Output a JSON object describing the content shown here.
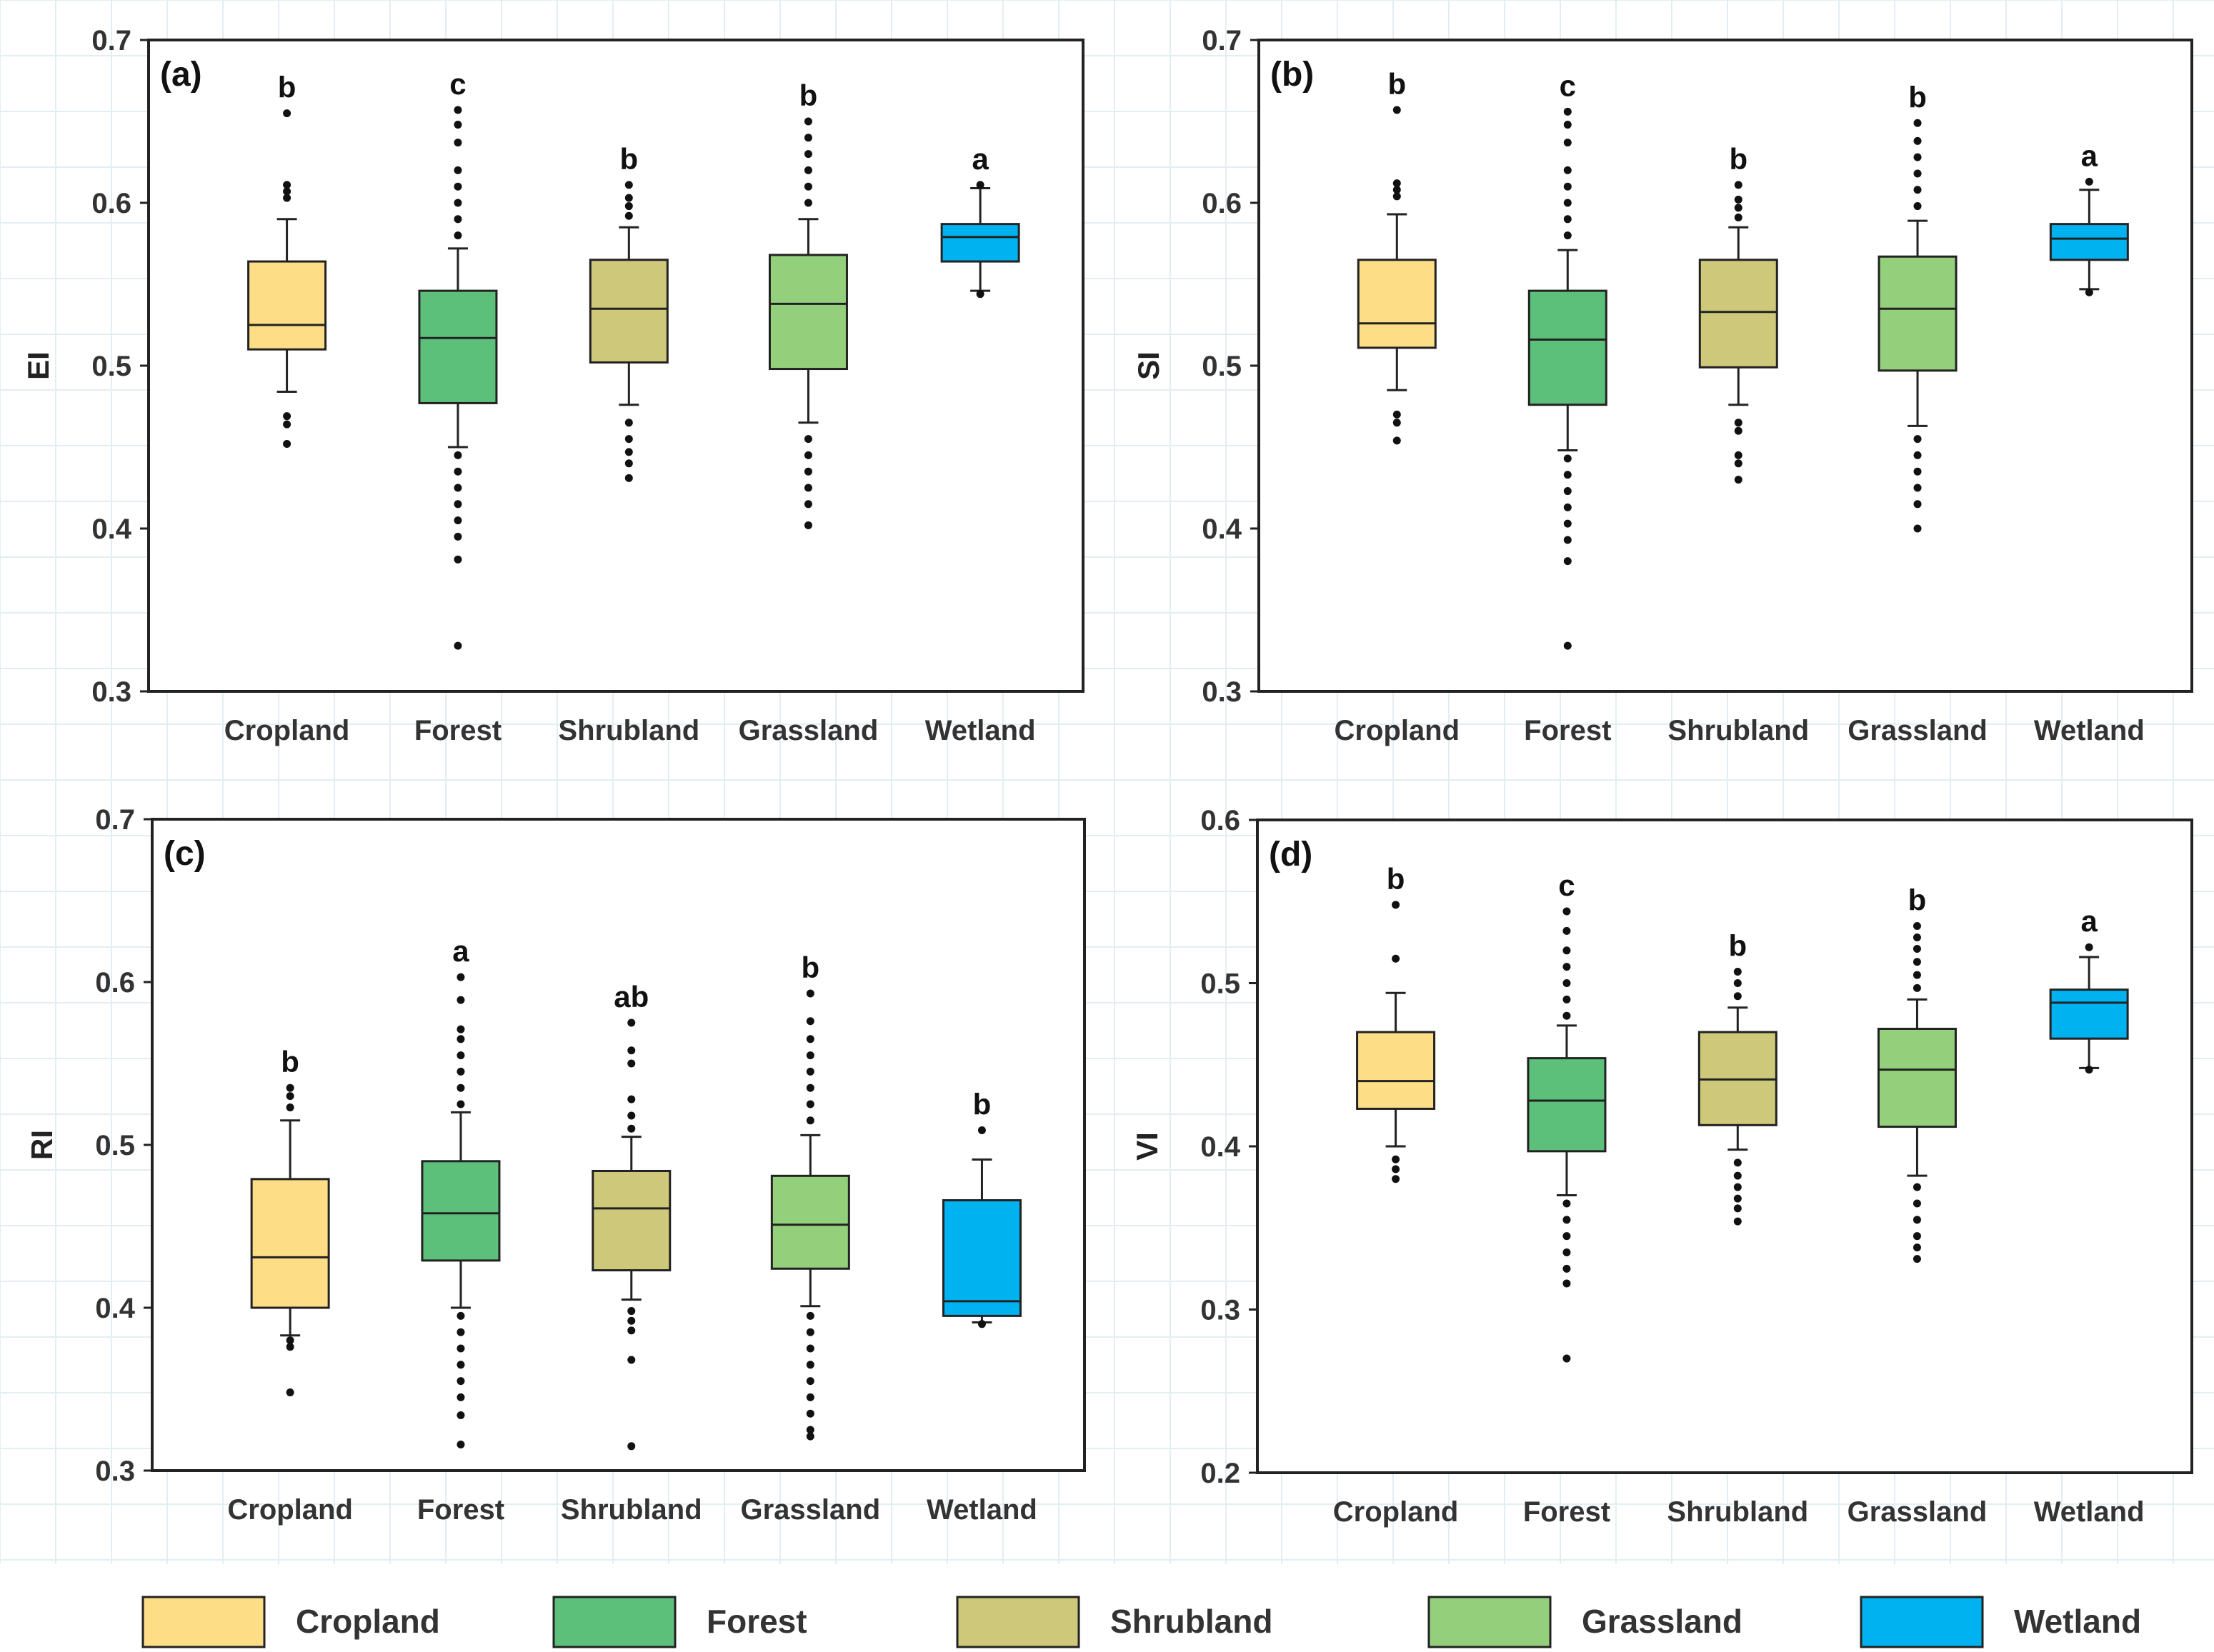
{
  "categories": [
    "Cropland",
    "Forest",
    "Shrubland",
    "Grassland",
    "Wetland"
  ],
  "colors": {
    "Cropland": "#fddd86",
    "Forest": "#5cc07a",
    "Shrubland": "#cec97a",
    "Grassland": "#94d07c",
    "Wetland": "#00b2f0",
    "grid": "#e3eef2"
  },
  "legend": {
    "items": [
      "Cropland",
      "Forest",
      "Shrubland",
      "Grassland",
      "Wetland"
    ]
  },
  "chart_data": [
    {
      "type": "box",
      "label": "(a)",
      "ylabel": "EI",
      "ylim": [
        0.3,
        0.7
      ],
      "yticks": [
        "0.3",
        "0.4",
        "0.5",
        "0.6",
        "0.7"
      ],
      "categories": [
        "Cropland",
        "Forest",
        "Shrubland",
        "Grassland",
        "Wetland"
      ],
      "boxes": [
        {
          "name": "Cropland",
          "q1": 0.51,
          "median": 0.525,
          "q3": 0.564,
          "whisker_low": 0.484,
          "whisker_high": 0.59,
          "sig": "b",
          "outliers_low": [
            0.469,
            0.464,
            0.452
          ],
          "outliers_high": [
            0.603,
            0.607,
            0.611,
            0.655
          ]
        },
        {
          "name": "Forest",
          "q1": 0.477,
          "median": 0.517,
          "q3": 0.546,
          "whisker_low": 0.45,
          "whisker_high": 0.572,
          "sig": "c",
          "outliers_low": [
            0.445,
            0.435,
            0.425,
            0.415,
            0.405,
            0.395,
            0.381,
            0.328
          ],
          "outliers_high": [
            0.58,
            0.59,
            0.6,
            0.61,
            0.62,
            0.637,
            0.648,
            0.657
          ]
        },
        {
          "name": "Shrubland",
          "q1": 0.502,
          "median": 0.535,
          "q3": 0.565,
          "whisker_low": 0.476,
          "whisker_high": 0.585,
          "sig": "b",
          "outliers_low": [
            0.465,
            0.455,
            0.447,
            0.44,
            0.431
          ],
          "outliers_high": [
            0.592,
            0.598,
            0.603,
            0.611
          ]
        },
        {
          "name": "Grassland",
          "q1": 0.498,
          "median": 0.538,
          "q3": 0.568,
          "whisker_low": 0.465,
          "whisker_high": 0.59,
          "sig": "b",
          "outliers_low": [
            0.455,
            0.445,
            0.435,
            0.425,
            0.415,
            0.402
          ],
          "outliers_high": [
            0.6,
            0.61,
            0.62,
            0.63,
            0.64,
            0.65
          ]
        },
        {
          "name": "Wetland",
          "q1": 0.564,
          "median": 0.579,
          "q3": 0.587,
          "whisker_low": 0.546,
          "whisker_high": 0.609,
          "sig": "a",
          "outliers_low": [
            0.544
          ],
          "outliers_high": [
            0.611
          ]
        }
      ]
    },
    {
      "type": "box",
      "label": "(b)",
      "ylabel": "SI",
      "ylim": [
        0.3,
        0.7
      ],
      "yticks": [
        "0.3",
        "0.4",
        "0.5",
        "0.6",
        "0.7"
      ],
      "categories": [
        "Cropland",
        "Forest",
        "Shrubland",
        "Grassland",
        "Wetland"
      ],
      "boxes": [
        {
          "name": "Cropland",
          "q1": 0.511,
          "median": 0.526,
          "q3": 0.565,
          "whisker_low": 0.485,
          "whisker_high": 0.593,
          "sig": "b",
          "outliers_low": [
            0.47,
            0.465,
            0.454
          ],
          "outliers_high": [
            0.604,
            0.608,
            0.612,
            0.657
          ]
        },
        {
          "name": "Forest",
          "q1": 0.476,
          "median": 0.516,
          "q3": 0.546,
          "whisker_low": 0.448,
          "whisker_high": 0.571,
          "sig": "c",
          "outliers_low": [
            0.443,
            0.433,
            0.423,
            0.413,
            0.403,
            0.393,
            0.38,
            0.328
          ],
          "outliers_high": [
            0.58,
            0.59,
            0.6,
            0.61,
            0.62,
            0.637,
            0.648,
            0.656
          ]
        },
        {
          "name": "Shrubland",
          "q1": 0.499,
          "median": 0.533,
          "q3": 0.565,
          "whisker_low": 0.476,
          "whisker_high": 0.585,
          "sig": "b",
          "outliers_low": [
            0.465,
            0.46,
            0.445,
            0.44,
            0.43
          ],
          "outliers_high": [
            0.591,
            0.597,
            0.602,
            0.611
          ]
        },
        {
          "name": "Grassland",
          "q1": 0.497,
          "median": 0.535,
          "q3": 0.567,
          "whisker_low": 0.463,
          "whisker_high": 0.589,
          "sig": "b",
          "outliers_low": [
            0.455,
            0.445,
            0.435,
            0.425,
            0.415,
            0.4
          ],
          "outliers_high": [
            0.598,
            0.608,
            0.618,
            0.628,
            0.638,
            0.649
          ]
        },
        {
          "name": "Wetland",
          "q1": 0.565,
          "median": 0.578,
          "q3": 0.587,
          "whisker_low": 0.547,
          "whisker_high": 0.608,
          "sig": "a",
          "outliers_low": [
            0.545
          ],
          "outliers_high": [
            0.613
          ]
        }
      ]
    },
    {
      "type": "box",
      "label": "(c)",
      "ylabel": "RI",
      "ylim": [
        0.3,
        0.7
      ],
      "yticks": [
        "0.3",
        "0.4",
        "0.5",
        "0.6",
        "0.7"
      ],
      "categories": [
        "Cropland",
        "Forest",
        "Shrubland",
        "Grassland",
        "Wetland"
      ],
      "boxes": [
        {
          "name": "Cropland",
          "q1": 0.4,
          "median": 0.431,
          "q3": 0.479,
          "whisker_low": 0.383,
          "whisker_high": 0.515,
          "sig": "b",
          "outliers_low": [
            0.38,
            0.376,
            0.348
          ],
          "outliers_high": [
            0.523,
            0.53,
            0.535
          ]
        },
        {
          "name": "Forest",
          "q1": 0.429,
          "median": 0.458,
          "q3": 0.49,
          "whisker_low": 0.4,
          "whisker_high": 0.52,
          "sig": "a",
          "outliers_low": [
            0.395,
            0.385,
            0.375,
            0.365,
            0.355,
            0.345,
            0.334,
            0.316
          ],
          "outliers_high": [
            0.525,
            0.535,
            0.545,
            0.555,
            0.565,
            0.571,
            0.589,
            0.603
          ]
        },
        {
          "name": "Shrubland",
          "q1": 0.423,
          "median": 0.461,
          "q3": 0.484,
          "whisker_low": 0.405,
          "whisker_high": 0.505,
          "sig": "ab",
          "outliers_low": [
            0.398,
            0.392,
            0.386,
            0.368,
            0.315
          ],
          "outliers_high": [
            0.51,
            0.518,
            0.528,
            0.55,
            0.558,
            0.575
          ]
        },
        {
          "name": "Grassland",
          "q1": 0.424,
          "median": 0.451,
          "q3": 0.481,
          "whisker_low": 0.401,
          "whisker_high": 0.506,
          "sig": "b",
          "outliers_low": [
            0.395,
            0.385,
            0.375,
            0.365,
            0.355,
            0.345,
            0.335,
            0.325,
            0.321
          ],
          "outliers_high": [
            0.515,
            0.525,
            0.535,
            0.545,
            0.555,
            0.565,
            0.576,
            0.593
          ]
        },
        {
          "name": "Wetland",
          "q1": 0.395,
          "median": 0.404,
          "q3": 0.466,
          "whisker_low": 0.391,
          "whisker_high": 0.491,
          "sig": "b",
          "outliers_low": [
            0.39
          ],
          "outliers_high": [
            0.509
          ]
        }
      ]
    },
    {
      "type": "box",
      "label": "(d)",
      "ylabel": "VI",
      "ylim": [
        0.2,
        0.6
      ],
      "yticks": [
        "0.2",
        "0.3",
        "0.4",
        "0.5",
        "0.6"
      ],
      "categories": [
        "Cropland",
        "Forest",
        "Shrubland",
        "Grassland",
        "Wetland"
      ],
      "boxes": [
        {
          "name": "Cropland",
          "q1": 0.423,
          "median": 0.44,
          "q3": 0.47,
          "whisker_low": 0.4,
          "whisker_high": 0.494,
          "sig": "b",
          "outliers_low": [
            0.392,
            0.386,
            0.38
          ],
          "outliers_high": [
            0.515,
            0.548
          ]
        },
        {
          "name": "Forest",
          "q1": 0.397,
          "median": 0.428,
          "q3": 0.454,
          "whisker_low": 0.37,
          "whisker_high": 0.474,
          "sig": "c",
          "outliers_low": [
            0.365,
            0.355,
            0.345,
            0.335,
            0.325,
            0.316,
            0.27
          ],
          "outliers_high": [
            0.48,
            0.49,
            0.5,
            0.51,
            0.52,
            0.532,
            0.544
          ]
        },
        {
          "name": "Shrubland",
          "q1": 0.413,
          "median": 0.441,
          "q3": 0.47,
          "whisker_low": 0.398,
          "whisker_high": 0.485,
          "sig": "b",
          "outliers_low": [
            0.39,
            0.382,
            0.375,
            0.368,
            0.362,
            0.354
          ],
          "outliers_high": [
            0.492,
            0.5,
            0.507
          ]
        },
        {
          "name": "Grassland",
          "q1": 0.412,
          "median": 0.447,
          "q3": 0.472,
          "whisker_low": 0.382,
          "whisker_high": 0.49,
          "sig": "b",
          "outliers_low": [
            0.375,
            0.365,
            0.355,
            0.345,
            0.338,
            0.331
          ],
          "outliers_high": [
            0.497,
            0.505,
            0.513,
            0.521,
            0.528,
            0.535
          ]
        },
        {
          "name": "Wetland",
          "q1": 0.466,
          "median": 0.488,
          "q3": 0.496,
          "whisker_low": 0.448,
          "whisker_high": 0.516,
          "sig": "a",
          "outliers_low": [
            0.447
          ],
          "outliers_high": [
            0.522
          ]
        }
      ]
    }
  ]
}
